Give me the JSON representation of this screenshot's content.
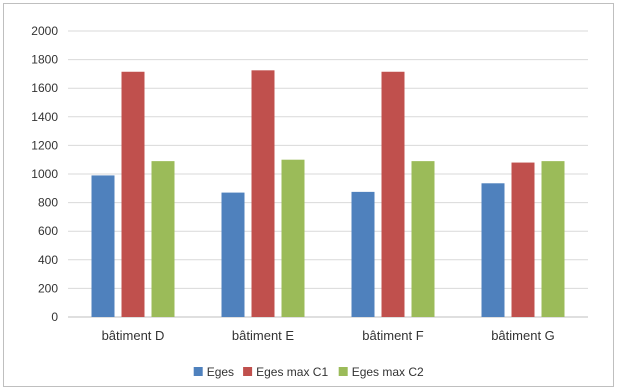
{
  "chart_data": {
    "type": "bar",
    "categories": [
      "bâtiment D",
      "bâtiment E",
      "bâtiment F",
      "bâtiment G"
    ],
    "series": [
      {
        "name": "Eges",
        "values": [
          990,
          870,
          875,
          935
        ],
        "color": "#4f81bd"
      },
      {
        "name": "Eges max C1",
        "values": [
          1715,
          1725,
          1715,
          1080
        ],
        "color": "#c0504d"
      },
      {
        "name": "Eges max C2",
        "values": [
          1090,
          1100,
          1090,
          1090
        ],
        "color": "#9bbb59"
      }
    ],
    "title": "",
    "xlabel": "",
    "ylabel": "",
    "ylim": [
      0,
      2000
    ],
    "yticks": [
      "0",
      "200",
      "400",
      "600",
      "800",
      "1000",
      "1200",
      "1400",
      "1600",
      "1800",
      "2000"
    ],
    "grid": true,
    "legend": "bottom"
  }
}
